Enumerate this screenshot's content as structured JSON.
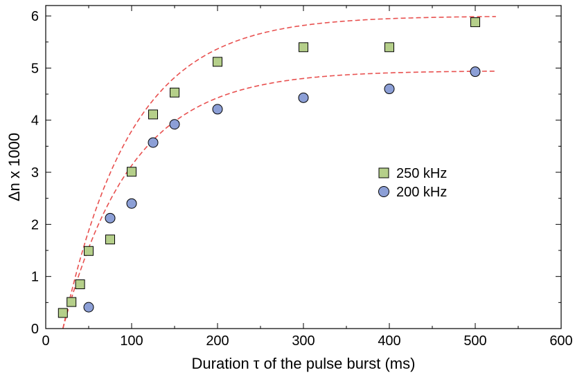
{
  "chart_data": {
    "type": "scatter",
    "title": "",
    "xlabel": "Duration τ of the pulse burst (ms)",
    "ylabel": "Δn x 1000",
    "xlim": [
      0,
      600
    ],
    "ylim": [
      0,
      6.2
    ],
    "xticks": [
      0,
      100,
      200,
      300,
      400,
      500,
      600
    ],
    "yticks": [
      0,
      1,
      2,
      3,
      4,
      5,
      6
    ],
    "grid": false,
    "legend_position": "right",
    "series": [
      {
        "name": "250 kHz",
        "marker": "square",
        "color": "#b5cf8a",
        "points": [
          [
            20,
            0.3
          ],
          [
            30,
            0.51
          ],
          [
            40,
            0.85
          ],
          [
            50,
            1.49
          ],
          [
            75,
            1.71
          ],
          [
            100,
            3.01
          ],
          [
            125,
            4.11
          ],
          [
            150,
            4.53
          ],
          [
            200,
            5.12
          ],
          [
            300,
            5.4
          ],
          [
            400,
            5.4
          ],
          [
            500,
            5.88
          ]
        ]
      },
      {
        "name": "200 kHz",
        "marker": "circle",
        "color": "#8c9fd6",
        "points": [
          [
            50,
            0.41
          ],
          [
            75,
            2.12
          ],
          [
            100,
            2.4
          ],
          [
            125,
            3.57
          ],
          [
            150,
            3.92
          ],
          [
            200,
            4.21
          ],
          [
            300,
            4.43
          ],
          [
            400,
            4.6
          ],
          [
            500,
            4.93
          ]
        ]
      }
    ],
    "fits": [
      {
        "for": "250 kHz",
        "color": "#e8504f",
        "style": "dashed",
        "amplitude": 6.0,
        "tau": 80,
        "t0": 20,
        "x_range": [
          20,
          525
        ]
      },
      {
        "for": "200 kHz",
        "color": "#e8504f",
        "style": "dashed",
        "amplitude": 4.95,
        "tau": 80,
        "t0": 20,
        "x_range": [
          20,
          525
        ]
      }
    ]
  }
}
